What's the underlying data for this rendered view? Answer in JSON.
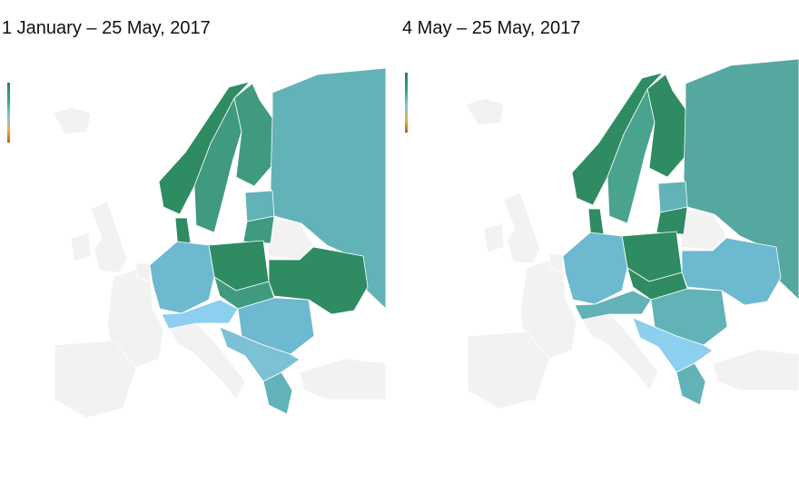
{
  "maps": [
    {
      "title": "1 January – 25 May, 2017",
      "regions": {
        "norway": "#2e8b62",
        "sweden": "#3f9a80",
        "finland": "#3f9a80",
        "russia": "#62b3b8",
        "baltics": "#62b3b8",
        "lithuania": "#3f9a80",
        "denmark": "#2e8b62",
        "poland": "#2e8b62",
        "germany": "#6db9d0",
        "ukraine": "#2e8b62",
        "czechia": "#3f9a80",
        "alps": "#8ccfef",
        "danube": "#6db9d0",
        "balkans": "#7cc1d6",
        "greece": "#62b3b8"
      }
    },
    {
      "title": "4 May – 25 May, 2017",
      "regions": {
        "norway": "#2e8b62",
        "sweden": "#4aa38e",
        "finland": "#2e8b62",
        "russia": "#55a89f",
        "baltics": "#62b3b8",
        "lithuania": "#2e8b62",
        "denmark": "#2e8b62",
        "poland": "#2e8b62",
        "germany": "#6db9d0",
        "ukraine": "#6db9d0",
        "czechia": "#2e8b62",
        "alps": "#62b3b8",
        "danube": "#62b3b8",
        "balkans": "#8ccfef",
        "greece": "#62b3b8"
      }
    }
  ],
  "legend": {
    "colors": [
      "#1f8a4c",
      "#7cc7dd",
      "#d0502c"
    ]
  },
  "colors": {
    "no_data": "#f2f2f2"
  }
}
